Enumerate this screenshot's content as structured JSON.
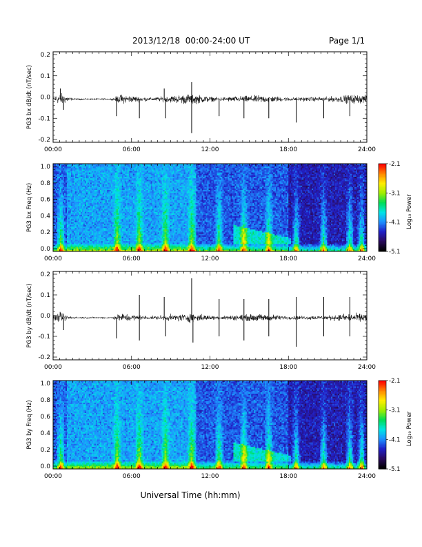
{
  "header": {
    "title": "2013/12/18  00:00-24:00 UT",
    "page": "Page 1/1"
  },
  "x_axis_label": "Universal Time (hh:mm)",
  "colors": {
    "trace": "#000000",
    "colorbar": [
      "#000000",
      "#2a0a5e",
      "#2020c8",
      "#1e90ff",
      "#00e5e5",
      "#00dd55",
      "#a0ee00",
      "#ffee00",
      "#ff8800",
      "#ff0000"
    ]
  },
  "chart_data": [
    {
      "type": "line",
      "title": "",
      "ylabel": "PG3 bx dB/dt (nT/sec)",
      "xlabel": "",
      "x_ticks": [
        "00:00",
        "06:00",
        "12:00",
        "18:00",
        "24:00"
      ],
      "xlim": [
        0,
        24
      ],
      "ylim": [
        -0.2,
        0.2
      ],
      "y_ticks": [
        "0.2",
        "0.1",
        "0.0",
        "-0.1",
        "-0.2"
      ],
      "baseline": -0.01,
      "noise": [
        {
          "t": 0.0,
          "amp": 0.012
        },
        {
          "t": 0.6,
          "amp": 0.04
        },
        {
          "t": 1.5,
          "amp": 0.006
        },
        {
          "t": 4.5,
          "amp": 0.006
        },
        {
          "t": 5.2,
          "amp": 0.03
        },
        {
          "t": 7.5,
          "amp": 0.01
        },
        {
          "t": 10.5,
          "amp": 0.035
        },
        {
          "t": 12.5,
          "amp": 0.012
        },
        {
          "t": 14.5,
          "amp": 0.02
        },
        {
          "t": 16.0,
          "amp": 0.025
        },
        {
          "t": 18.0,
          "amp": 0.012
        },
        {
          "t": 21.0,
          "amp": 0.015
        },
        {
          "t": 23.0,
          "amp": 0.03
        },
        {
          "t": 24.0,
          "amp": 0.025
        }
      ],
      "spikes": [
        {
          "t": 0.55,
          "value": 0.04
        },
        {
          "t": 0.8,
          "value": -0.06
        },
        {
          "t": 4.85,
          "value": -0.09
        },
        {
          "t": 6.6,
          "value": -0.1
        },
        {
          "t": 8.5,
          "value": 0.04
        },
        {
          "t": 8.6,
          "value": -0.1
        },
        {
          "t": 10.6,
          "value": 0.07
        },
        {
          "t": 10.6,
          "value": -0.17
        },
        {
          "t": 12.7,
          "value": -0.09
        },
        {
          "t": 14.6,
          "value": -0.1
        },
        {
          "t": 16.5,
          "value": -0.1
        },
        {
          "t": 18.6,
          "value": -0.12
        },
        {
          "t": 20.7,
          "value": -0.1
        },
        {
          "t": 22.7,
          "value": -0.09
        }
      ]
    },
    {
      "type": "heatmap",
      "title": "",
      "ylabel": "PG3 bx Freq (Hz)",
      "xlabel": "",
      "x_ticks": [
        "00:00",
        "06:00",
        "12:00",
        "18:00",
        "24:00"
      ],
      "xlim": [
        0,
        24
      ],
      "ylim": [
        0.0,
        1.0
      ],
      "y_ticks": [
        "1.0",
        "0.8",
        "0.6",
        "0.4",
        "0.2",
        "0.0"
      ],
      "colorbar_label": "Log₁₀ Power",
      "colorbar_ticks": [
        "-2.1",
        "-3.1",
        "-4.1",
        "-5.1"
      ],
      "zlim": [
        -5.1,
        -2.1
      ],
      "bursts": [
        0.6,
        4.9,
        6.6,
        8.6,
        10.6,
        12.7,
        14.6,
        16.5,
        18.6,
        20.7,
        22.7,
        23.6
      ],
      "band_14_18": {
        "t_start": 13.8,
        "t_end": 18.2,
        "freq_top": 0.3
      }
    },
    {
      "type": "line",
      "title": "",
      "ylabel": "PG3 by dB/dt (nT/sec)",
      "xlabel": "",
      "x_ticks": [
        "00:00",
        "06:00",
        "12:00",
        "18:00",
        "24:00"
      ],
      "xlim": [
        0,
        24
      ],
      "ylim": [
        -0.2,
        0.2
      ],
      "y_ticks": [
        "0.2",
        "0.1",
        "0.0",
        "-0.1",
        "-0.2"
      ],
      "baseline": -0.01,
      "noise": [
        {
          "t": 0.0,
          "amp": 0.012
        },
        {
          "t": 0.6,
          "amp": 0.035
        },
        {
          "t": 1.5,
          "amp": 0.006
        },
        {
          "t": 4.5,
          "amp": 0.006
        },
        {
          "t": 5.2,
          "amp": 0.03
        },
        {
          "t": 7.5,
          "amp": 0.01
        },
        {
          "t": 10.5,
          "amp": 0.03
        },
        {
          "t": 12.5,
          "amp": 0.012
        },
        {
          "t": 14.5,
          "amp": 0.02
        },
        {
          "t": 16.0,
          "amp": 0.025
        },
        {
          "t": 18.0,
          "amp": 0.012
        },
        {
          "t": 21.0,
          "amp": 0.015
        },
        {
          "t": 23.0,
          "amp": 0.028
        },
        {
          "t": 24.0,
          "amp": 0.025
        }
      ],
      "spikes": [
        {
          "t": 0.8,
          "value": -0.07
        },
        {
          "t": 4.85,
          "value": -0.11
        },
        {
          "t": 6.6,
          "value": 0.1
        },
        {
          "t": 6.6,
          "value": -0.12
        },
        {
          "t": 8.5,
          "value": 0.09
        },
        {
          "t": 8.6,
          "value": -0.1
        },
        {
          "t": 10.6,
          "value": 0.18
        },
        {
          "t": 10.7,
          "value": -0.13
        },
        {
          "t": 12.7,
          "value": 0.08
        },
        {
          "t": 12.7,
          "value": -0.1
        },
        {
          "t": 14.6,
          "value": 0.08
        },
        {
          "t": 14.6,
          "value": -0.12
        },
        {
          "t": 16.5,
          "value": 0.08
        },
        {
          "t": 16.5,
          "value": -0.1
        },
        {
          "t": 18.6,
          "value": 0.09
        },
        {
          "t": 18.6,
          "value": -0.15
        },
        {
          "t": 20.7,
          "value": 0.09
        },
        {
          "t": 20.7,
          "value": -0.1
        },
        {
          "t": 22.7,
          "value": 0.09
        },
        {
          "t": 22.7,
          "value": -0.1
        }
      ]
    },
    {
      "type": "heatmap",
      "title": "",
      "ylabel": "PG3 by Freq (Hz)",
      "xlabel": "",
      "x_ticks": [
        "00:00",
        "06:00",
        "12:00",
        "18:00",
        "24:00"
      ],
      "xlim": [
        0,
        24
      ],
      "ylim": [
        0.0,
        1.0
      ],
      "y_ticks": [
        "1.0",
        "0.8",
        "0.6",
        "0.4",
        "0.2",
        "0.0"
      ],
      "colorbar_label": "Log₁₀ Power",
      "colorbar_ticks": [
        "-2.1",
        "-3.1",
        "-4.1",
        "-5.1"
      ],
      "zlim": [
        -5.1,
        -2.1
      ],
      "bursts": [
        0.6,
        4.9,
        6.6,
        8.6,
        10.6,
        12.7,
        14.6,
        16.5,
        18.6,
        20.7,
        22.7,
        23.6
      ],
      "band_14_18": {
        "t_start": 13.8,
        "t_end": 18.2,
        "freq_top": 0.3
      }
    }
  ]
}
